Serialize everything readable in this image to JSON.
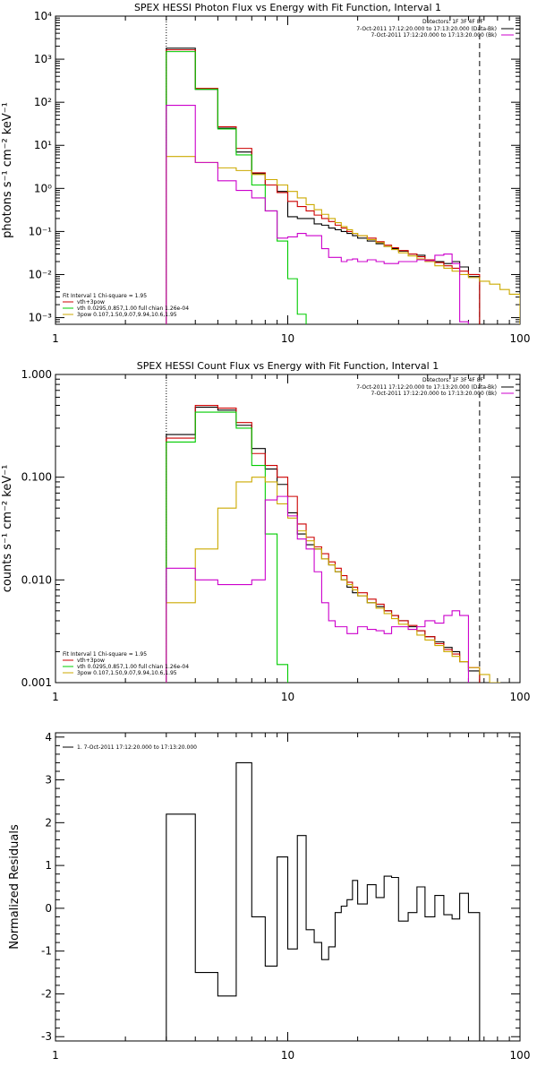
{
  "chart_data": [
    {
      "type": "line",
      "step": true,
      "title": "SPEX HESSI Photon Flux vs Energy with Fit Function, Interval 1",
      "xlabel": "",
      "ylabel": "photons s⁻¹ cm⁻² keV⁻¹",
      "xscale": "log",
      "yscale": "log",
      "xlim": [
        1,
        100
      ],
      "ylim": [
        0.0007,
        10000
      ],
      "x_ticks": [
        1,
        10,
        100
      ],
      "x_tick_labels": [
        "1",
        "10",
        "100"
      ],
      "y_ticks": [
        0.001,
        0.01,
        0.1,
        1,
        10,
        100,
        1000,
        10000
      ],
      "y_tick_labels": [
        "10⁻³",
        "10⁻²",
        "10⁻¹",
        "10⁰",
        "10¹",
        "10²",
        "10³",
        "10⁴"
      ],
      "vlines": [
        {
          "x": 3,
          "style": "dotted"
        },
        {
          "x": 67,
          "style": "dashed"
        }
      ],
      "legend_top": {
        "detectors": "Detectors: 1F 3F 4F 8F",
        "entries": [
          {
            "label": "7-Oct-2011 17:12:20.000 to 17:13:20.000 (Data-Bk)",
            "color": "#000000"
          },
          {
            "label": "7-Oct-2011 17:12:20.000 to 17:13:20.000 (Bk)",
            "color": "#cc00cc"
          }
        ]
      },
      "legend_bottom": {
        "header": "Fit Interval 1    Chi-square = 1.95",
        "entries": [
          {
            "label": "vth+3pow",
            "color": "#cc0000"
          },
          {
            "label": "vth 0.0295,0.857,1.00  full chian 1.26e-04",
            "color": "#00cc00"
          },
          {
            "label": "3pow 0.107,1.50,9.07,9.94,10.6,1.95",
            "color": "#ccaa00"
          }
        ]
      },
      "bin_edges": [
        3,
        4,
        5,
        6,
        7,
        8,
        9,
        10,
        11,
        12,
        13,
        14,
        15,
        16,
        17,
        18,
        19,
        20,
        22,
        24,
        26,
        28,
        30,
        33,
        36,
        39,
        43,
        47,
        51,
        55,
        60,
        67,
        74,
        82,
        90,
        100
      ],
      "series": [
        {
          "name": "Data-Bk",
          "color": "#000000",
          "values": [
            1800,
            200,
            25,
            7,
            2.2,
            1.2,
            0.85,
            0.22,
            0.2,
            0.2,
            0.15,
            0.14,
            0.12,
            0.11,
            0.1,
            0.09,
            0.08,
            0.07,
            0.06,
            0.052,
            0.045,
            0.04,
            0.035,
            0.03,
            0.028,
            0.022,
            0.02,
            0.018,
            0.02,
            0.015,
            0.009
          ]
        },
        {
          "name": "vth+3pow",
          "color": "#cc0000",
          "values": [
            1650,
            210,
            27,
            8.5,
            2.3,
            1.2,
            0.8,
            0.5,
            0.38,
            0.3,
            0.24,
            0.2,
            0.17,
            0.14,
            0.12,
            0.1,
            0.09,
            0.08,
            0.07,
            0.058,
            0.048,
            0.042,
            0.036,
            0.03,
            0.026,
            0.022,
            0.019,
            0.016,
            0.014,
            0.012,
            0.01
          ]
        },
        {
          "name": "vth",
          "color": "#00cc00",
          "values": [
            1500,
            200,
            24,
            6,
            1.2,
            0.3,
            0.06,
            0.008,
            0.0012
          ]
        },
        {
          "name": "3pow",
          "color": "#ccaa00",
          "values": [
            5.5,
            4,
            3,
            2.6,
            2.1,
            1.6,
            1.2,
            0.85,
            0.6,
            0.42,
            0.32,
            0.25,
            0.2,
            0.16,
            0.13,
            0.11,
            0.09,
            0.08,
            0.065,
            0.055,
            0.045,
            0.038,
            0.032,
            0.027,
            0.023,
            0.02,
            0.016,
            0.014,
            0.012,
            0.01,
            0.0085,
            0.007,
            0.006,
            0.0045,
            0.0035
          ]
        },
        {
          "name": "Bk",
          "color": "#cc00cc",
          "values": [
            85,
            4,
            1.5,
            0.9,
            0.6,
            0.3,
            0.07,
            0.075,
            0.09,
            0.08,
            0.08,
            0.04,
            0.025,
            0.025,
            0.02,
            0.022,
            0.023,
            0.02,
            0.022,
            0.02,
            0.018,
            0.018,
            0.02,
            0.02,
            0.022,
            0.021,
            0.028,
            0.03,
            0.018,
            0.0008
          ]
        }
      ]
    },
    {
      "type": "line",
      "step": true,
      "title": "SPEX HESSI Count Flux vs Energy with Fit Function, Interval 1",
      "xlabel": "",
      "ylabel": "counts s⁻¹ cm⁻² keV⁻¹",
      "xscale": "log",
      "yscale": "log",
      "xlim": [
        1,
        100
      ],
      "ylim": [
        0.001,
        1.0
      ],
      "x_ticks": [
        1,
        10,
        100
      ],
      "x_tick_labels": [
        "1",
        "10",
        "100"
      ],
      "y_ticks": [
        0.001,
        0.01,
        0.1,
        1
      ],
      "y_tick_labels": [
        "0.001",
        "0.010",
        "0.100",
        "1.000"
      ],
      "vlines": [
        {
          "x": 3,
          "style": "dotted"
        },
        {
          "x": 67,
          "style": "dashed"
        }
      ],
      "legend_top": {
        "detectors": "Detectors: 1F 3F 4F 8F",
        "entries": [
          {
            "label": "7-Oct-2011 17:12:20.000 to 17:13:20.000 (Data-Bk)",
            "color": "#000000"
          },
          {
            "label": "7-Oct-2011 17:12:20.000 to 17:13:20.000 (Bk)",
            "color": "#cc00cc"
          }
        ]
      },
      "legend_bottom": {
        "header": "Fit Interval 1    Chi-square = 1.95",
        "entries": [
          {
            "label": "vth+3pow",
            "color": "#cc0000"
          },
          {
            "label": "vth 0.0295,0.857,1.00  full chian 1.26e-04",
            "color": "#00cc00"
          },
          {
            "label": "3pow 0.107,1.50,9.07,9.94,10.6,1.95",
            "color": "#ccaa00"
          }
        ]
      },
      "bin_edges": [
        3,
        4,
        5,
        6,
        7,
        8,
        9,
        10,
        11,
        12,
        13,
        14,
        15,
        16,
        17,
        18,
        19,
        20,
        22,
        24,
        26,
        28,
        30,
        33,
        36,
        39,
        43,
        47,
        51,
        55,
        60,
        67,
        74,
        82,
        90,
        100
      ],
      "series": [
        {
          "name": "Data-Bk",
          "color": "#000000",
          "values": [
            0.26,
            0.48,
            0.45,
            0.32,
            0.19,
            0.12,
            0.085,
            0.045,
            0.028,
            0.022,
            0.02,
            0.016,
            0.014,
            0.012,
            0.01,
            0.0085,
            0.0075,
            0.007,
            0.006,
            0.0055,
            0.005,
            0.0045,
            0.004,
            0.0035,
            0.0032,
            0.0028,
            0.0025,
            0.0022,
            0.002,
            0.0016,
            0.0013
          ]
        },
        {
          "name": "vth+3pow",
          "color": "#cc0000",
          "values": [
            0.24,
            0.5,
            0.47,
            0.34,
            0.17,
            0.13,
            0.1,
            0.065,
            0.035,
            0.026,
            0.021,
            0.018,
            0.015,
            0.013,
            0.011,
            0.0095,
            0.0085,
            0.0075,
            0.0065,
            0.0058,
            0.005,
            0.0045,
            0.004,
            0.0036,
            0.0032,
            0.0028,
            0.0024,
            0.0021,
            0.0019,
            0.0016,
            0.0014
          ]
        },
        {
          "name": "vth",
          "color": "#00cc00",
          "values": [
            0.22,
            0.43,
            0.43,
            0.3,
            0.13,
            0.028,
            0.0015
          ]
        },
        {
          "name": "3pow",
          "color": "#ccaa00",
          "values": [
            0.006,
            0.02,
            0.05,
            0.09,
            0.1,
            0.09,
            0.055,
            0.04,
            0.03,
            0.024,
            0.02,
            0.016,
            0.014,
            0.012,
            0.01,
            0.009,
            0.008,
            0.007,
            0.006,
            0.0053,
            0.0047,
            0.0042,
            0.0037,
            0.0033,
            0.0029,
            0.0026,
            0.0023,
            0.002,
            0.0018,
            0.0016,
            0.0014,
            0.0012,
            0.001
          ]
        },
        {
          "name": "Bk",
          "color": "#cc00cc",
          "values": [
            0.013,
            0.01,
            0.009,
            0.009,
            0.01,
            0.06,
            0.065,
            0.042,
            0.025,
            0.02,
            0.012,
            0.006,
            0.004,
            0.0035,
            0.0035,
            0.003,
            0.003,
            0.0035,
            0.0033,
            0.0032,
            0.003,
            0.0035,
            0.0035,
            0.0033,
            0.0035,
            0.004,
            0.0038,
            0.0045,
            0.005,
            0.0045,
            0.0004
          ]
        }
      ]
    },
    {
      "type": "line",
      "step": true,
      "title": "",
      "xlabel": "",
      "ylabel": "Normalized Residuals",
      "xscale": "log",
      "yscale": "linear",
      "xlim": [
        1,
        100
      ],
      "ylim": [
        -3.1,
        4.1
      ],
      "x_ticks": [
        1,
        10,
        100
      ],
      "x_tick_labels": [
        "1",
        "10",
        "100"
      ],
      "y_ticks": [
        -3,
        -2,
        -1,
        0,
        1,
        2,
        3,
        4
      ],
      "y_tick_labels": [
        "-3",
        "-2",
        "-1",
        "0",
        "1",
        "2",
        "3",
        "4"
      ],
      "legend_top": {
        "entries": [
          {
            "label": "1.  7-Oct-2011 17:12:20.000 to 17:13:20.000",
            "color": "#000000"
          }
        ]
      },
      "bin_edges": [
        3,
        4,
        5,
        6,
        7,
        8,
        9,
        10,
        11,
        12,
        13,
        14,
        15,
        16,
        17,
        18,
        19,
        20,
        22,
        24,
        26,
        28,
        30,
        33,
        36,
        39,
        43,
        47,
        51,
        55,
        60,
        67
      ],
      "series": [
        {
          "name": "",
          "color": "#000000",
          "values": [
            2.2,
            -1.5,
            -2.05,
            3.4,
            -0.2,
            -1.35,
            1.2,
            -0.95,
            1.7,
            -0.5,
            -0.8,
            -1.2,
            -0.9,
            -0.1,
            0.05,
            0.2,
            0.65,
            0.1,
            0.55,
            0.25,
            0.75,
            0.72,
            -0.3,
            -0.1,
            0.5,
            -0.2,
            0.3,
            -0.15,
            -0.25,
            0.35,
            -0.1
          ]
        }
      ]
    }
  ]
}
